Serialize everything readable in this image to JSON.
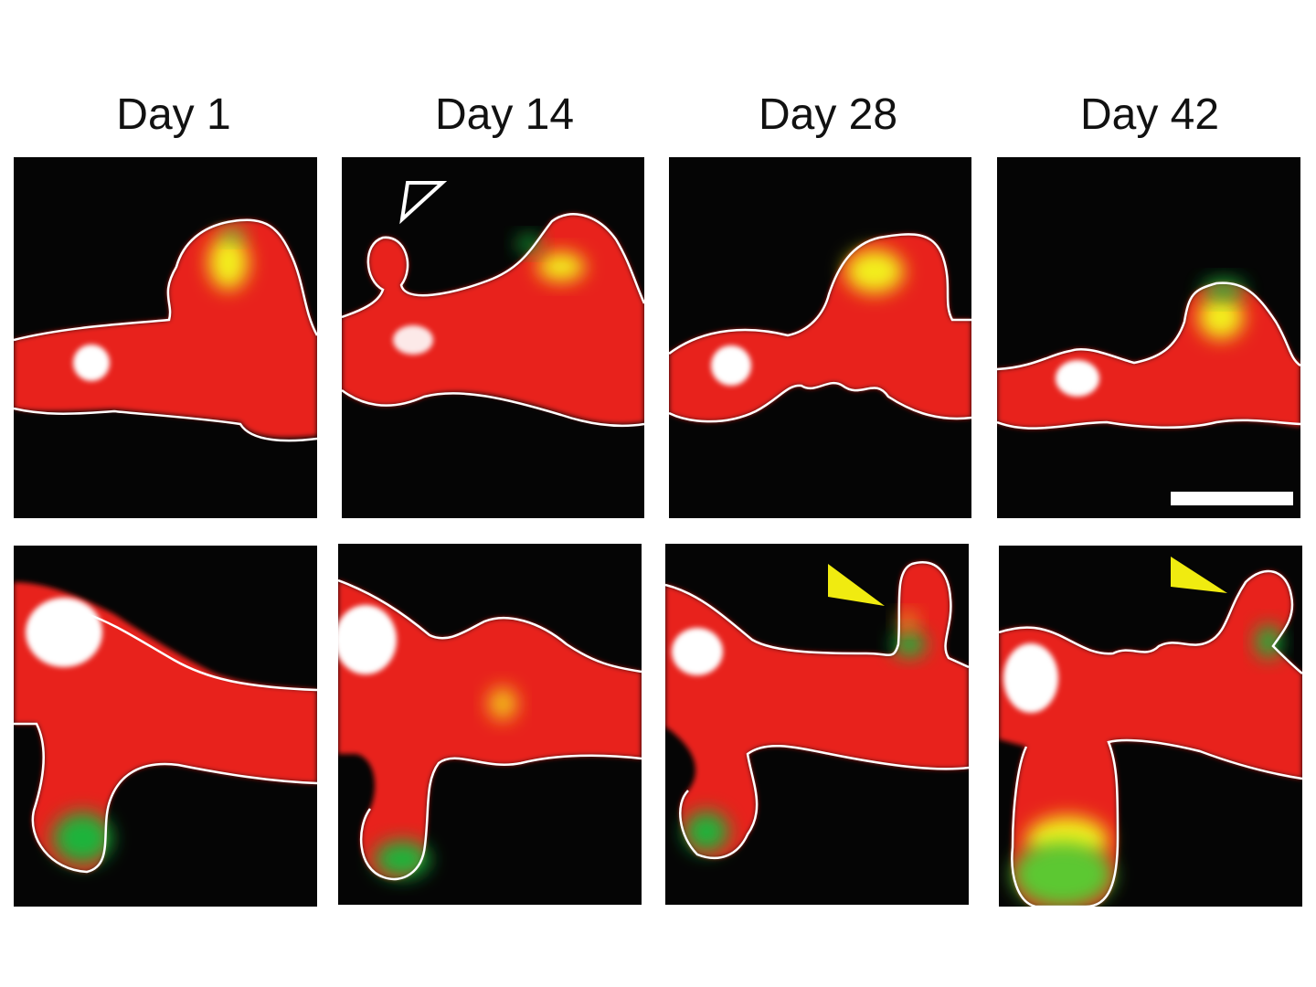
{
  "figure": {
    "columns": [
      {
        "label": "Day 1"
      },
      {
        "label": "Day 14"
      },
      {
        "label": "Day 28"
      },
      {
        "label": "Day 42"
      }
    ],
    "colors": {
      "background": "#050505",
      "dendrite": "#e8201c",
      "outline": "#ffffff",
      "bouton_green": "#1fb43a",
      "overlap_yellow": "#f3ef1a",
      "marker_white": "#ffffff",
      "arrowhead_filled": "#f0eb10",
      "arrowhead_open": "#ffffff"
    },
    "markers": {
      "open_arrowhead": "open-arrowhead-icon",
      "filled_arrowhead": "filled-arrowhead-icon",
      "scale_bar": "scale-bar"
    }
  }
}
